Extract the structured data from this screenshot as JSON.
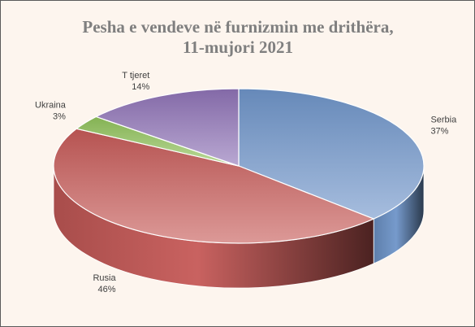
{
  "chart_data": {
    "type": "pie",
    "title_lines": [
      "Pesha e vendeve në furnizmin me drithëra,",
      "11-mujori 2021"
    ],
    "slices": [
      {
        "name": "Serbia",
        "value": 37,
        "label": "37%",
        "color": "#6f95c9"
      },
      {
        "name": "Rusia",
        "value": 46,
        "label": "46%",
        "color": "#c65a58"
      },
      {
        "name": "Ukraina",
        "value": 3,
        "label": "3%",
        "color": "#8fc15a"
      },
      {
        "name": "T tjeret",
        "value": 14,
        "label": "14%",
        "color": "#8e72b6"
      }
    ],
    "style": "3d-pie",
    "legend": "none"
  }
}
